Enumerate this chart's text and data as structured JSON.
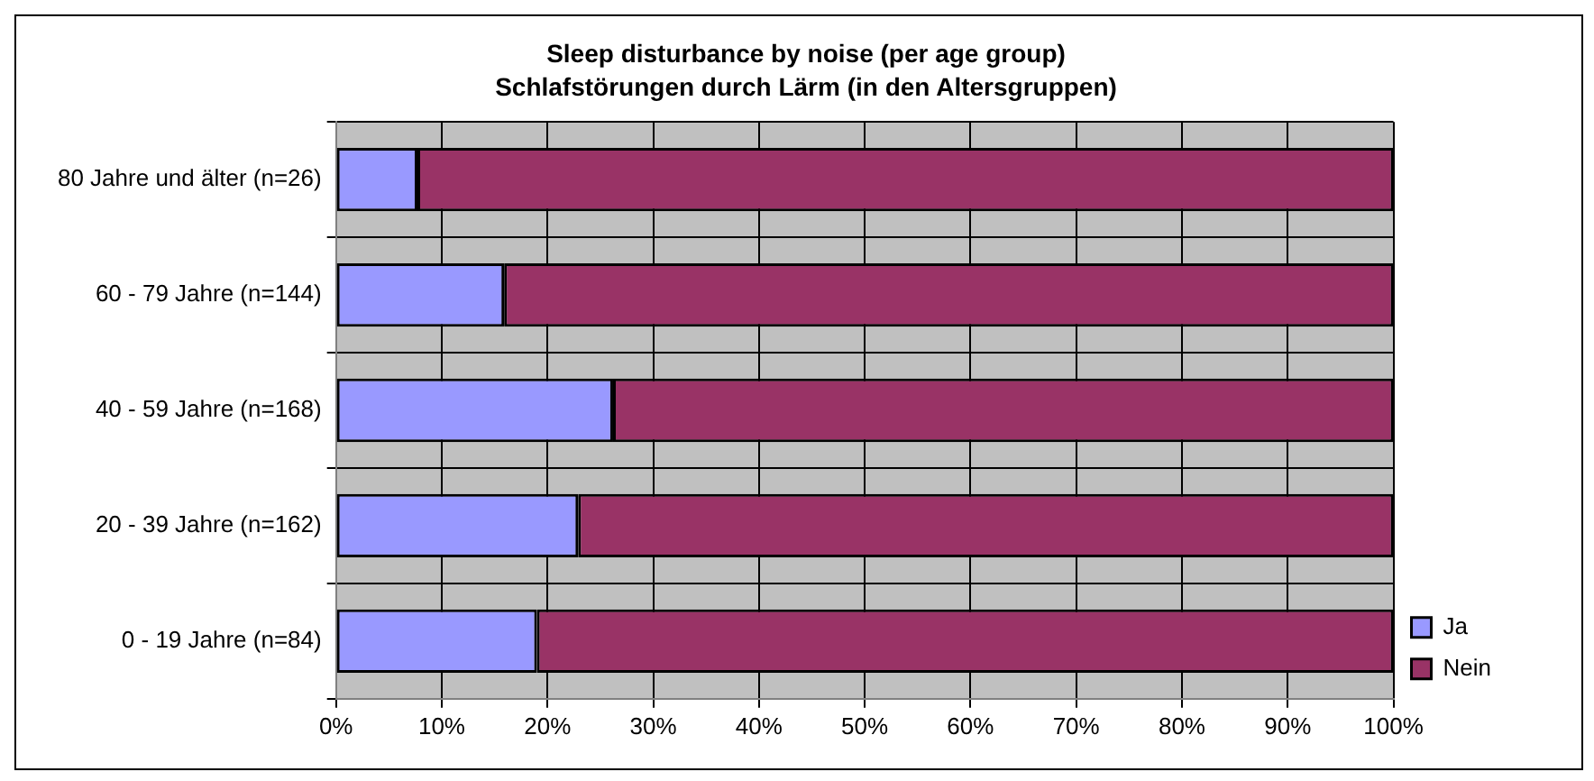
{
  "chart_data": {
    "type": "bar",
    "orientation": "horizontal",
    "stacked": true,
    "title": "Sleep disturbance by noise (per age group)",
    "subtitle": "Schlafstörungen durch Lärm (in den Altersgruppen)",
    "categories": [
      "80 Jahre und älter (n=26)",
      "60 - 79 Jahre (n=144)",
      "40 - 59 Jahre (n=168)",
      "20 - 39 Jahre (n=162)",
      "0 - 19 Jahre (n=84)"
    ],
    "series": [
      {
        "name": "Ja",
        "color": "#9999ff",
        "values": [
          7.7,
          15.9,
          26.2,
          22.9,
          19.0
        ]
      },
      {
        "name": "Nein",
        "color": "#993366",
        "values": [
          92.3,
          84.1,
          73.8,
          77.1,
          81.0
        ]
      }
    ],
    "xlim": [
      0,
      100
    ],
    "xticks": [
      {
        "value": 0,
        "label": "0%"
      },
      {
        "value": 10,
        "label": "10%"
      },
      {
        "value": 20,
        "label": "20%"
      },
      {
        "value": 30,
        "label": "30%"
      },
      {
        "value": 40,
        "label": "40%"
      },
      {
        "value": 50,
        "label": "50%"
      },
      {
        "value": 60,
        "label": "60%"
      },
      {
        "value": 70,
        "label": "70%"
      },
      {
        "value": 80,
        "label": "80%"
      },
      {
        "value": 90,
        "label": "90%"
      },
      {
        "value": 100,
        "label": "100%"
      }
    ],
    "grid": true,
    "legend": "right"
  }
}
